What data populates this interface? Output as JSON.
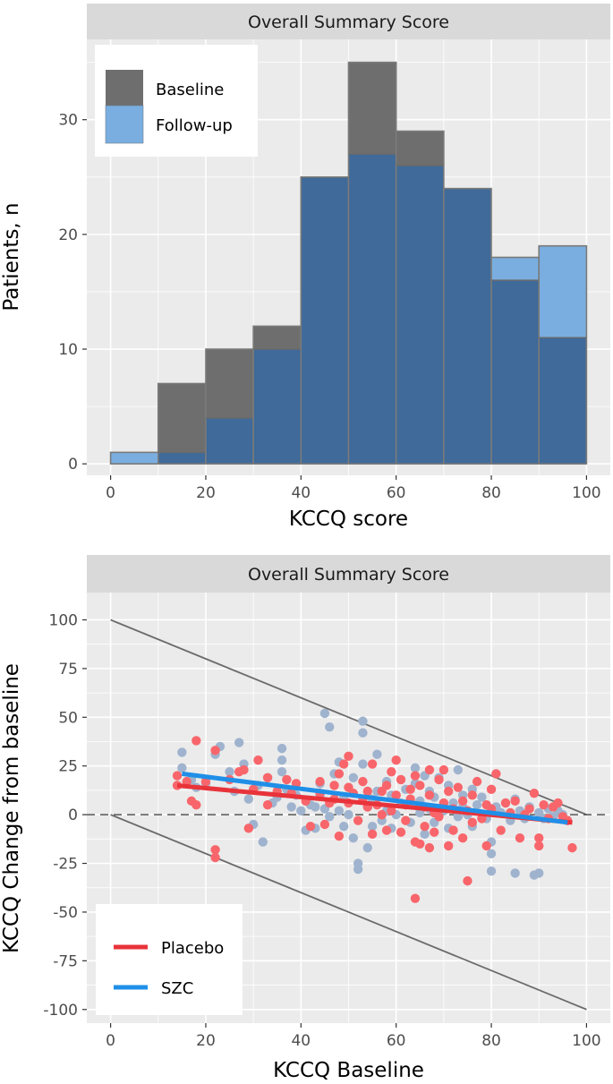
{
  "chart_data": [
    {
      "type": "histogram",
      "facet_label": "Overall Summary Score",
      "xlabel": "KCCQ score",
      "ylabel": "Patients, n",
      "xlim": [
        -5,
        105
      ],
      "ylim": [
        -1,
        37
      ],
      "x_ticks": [
        "0",
        "20",
        "40",
        "60",
        "80",
        "100"
      ],
      "y_ticks": [
        "0",
        "10",
        "20",
        "30"
      ],
      "bin_edges": [
        0,
        10,
        20,
        30,
        40,
        50,
        60,
        70,
        80,
        90,
        100
      ],
      "series": [
        {
          "name": "Baseline",
          "color": "#6e6e6e",
          "values": [
            0,
            7,
            10,
            12,
            25,
            35,
            29,
            24,
            16,
            11
          ]
        },
        {
          "name": "Follow-up",
          "color": "#7aaee0",
          "values": [
            1,
            1,
            4,
            10,
            25,
            27,
            26,
            24,
            18,
            19
          ]
        }
      ],
      "overlap_color": "#3f6a9a",
      "legend": {
        "position": "top-left"
      },
      "grid": true
    },
    {
      "type": "scatter",
      "facet_label": "Overall Summary Score",
      "xlabel": "KCCQ Baseline",
      "ylabel": "KCCQ Change from baseline",
      "xlim": [
        -5,
        105
      ],
      "ylim": [
        -107,
        114
      ],
      "x_ticks": [
        "0",
        "20",
        "40",
        "60",
        "80",
        "100"
      ],
      "y_ticks": [
        "100",
        "75",
        "50",
        "25",
        "0",
        "-25",
        "-50",
        "-75",
        "-100"
      ],
      "reference_lines": {
        "upper_bound": [
          [
            0,
            100
          ],
          [
            100,
            0
          ]
        ],
        "lower_bound": [
          [
            0,
            0
          ],
          [
            100,
            -100
          ]
        ],
        "zero_line": 0
      },
      "series": [
        {
          "name": "Placebo",
          "color": "#f8666b",
          "line_color": "#e8333a",
          "fit": [
            [
              14,
              15
            ],
            [
              97,
              -4
            ]
          ],
          "points": [
            [
              14,
              20
            ],
            [
              14,
              15
            ],
            [
              16,
              17
            ],
            [
              17,
              7
            ],
            [
              18,
              38
            ],
            [
              18,
              5
            ],
            [
              20,
              17
            ],
            [
              22,
              33
            ],
            [
              22,
              -18
            ],
            [
              22,
              -22
            ],
            [
              25,
              18
            ],
            [
              27,
              22
            ],
            [
              28,
              23
            ],
            [
              29,
              -7
            ],
            [
              30,
              13
            ],
            [
              31,
              28
            ],
            [
              33,
              19
            ],
            [
              33,
              5
            ],
            [
              35,
              12
            ],
            [
              37,
              18
            ],
            [
              38,
              11
            ],
            [
              39,
              16
            ],
            [
              41,
              7
            ],
            [
              42,
              -6
            ],
            [
              44,
              17
            ],
            [
              44,
              11
            ],
            [
              45,
              -5
            ],
            [
              46,
              6
            ],
            [
              47,
              15
            ],
            [
              47,
              8
            ],
            [
              48,
              21
            ],
            [
              48,
              -11
            ],
            [
              49,
              26
            ],
            [
              50,
              30
            ],
            [
              50,
              14
            ],
            [
              50,
              6
            ],
            [
              51,
              11
            ],
            [
              52,
              -3
            ],
            [
              53,
              17
            ],
            [
              53,
              8
            ],
            [
              54,
              12
            ],
            [
              54,
              4
            ],
            [
              55,
              -10
            ],
            [
              55,
              26
            ],
            [
              56,
              5
            ],
            [
              57,
              12
            ],
            [
              57,
              0
            ],
            [
              58,
              15
            ],
            [
              58,
              -8
            ],
            [
              59,
              22
            ],
            [
              59,
              2
            ],
            [
              60,
              10
            ],
            [
              60,
              28
            ],
            [
              61,
              -9
            ],
            [
              61,
              18
            ],
            [
              62,
              5
            ],
            [
              62,
              -3
            ],
            [
              63,
              13
            ],
            [
              63,
              8
            ],
            [
              64,
              20
            ],
            [
              64,
              -14
            ],
            [
              64,
              -43
            ],
            [
              65,
              15
            ],
            [
              65,
              -15
            ],
            [
              66,
              4
            ],
            [
              66,
              -6
            ],
            [
              67,
              10
            ],
            [
              67,
              23
            ],
            [
              67,
              -17
            ],
            [
              68,
              1
            ],
            [
              68,
              -9
            ],
            [
              69,
              18
            ],
            [
              69,
              -1
            ],
            [
              70,
              6
            ],
            [
              70,
              23
            ],
            [
              71,
              -16
            ],
            [
              71,
              12
            ],
            [
              72,
              3
            ],
            [
              72,
              -8
            ],
            [
              73,
              14
            ],
            [
              74,
              7
            ],
            [
              74,
              -12
            ],
            [
              75,
              -34
            ],
            [
              75,
              2
            ],
            [
              76,
              10
            ],
            [
              76,
              -4
            ],
            [
              77,
              17
            ],
            [
              78,
              -2
            ],
            [
              79,
              5
            ],
            [
              79,
              -16
            ],
            [
              80,
              3
            ],
            [
              80,
              13
            ],
            [
              81,
              21
            ],
            [
              82,
              -8
            ],
            [
              83,
              6
            ],
            [
              84,
              1
            ],
            [
              85,
              7
            ],
            [
              86,
              -12
            ],
            [
              87,
              0
            ],
            [
              88,
              3
            ],
            [
              89,
              11
            ],
            [
              90,
              -12
            ],
            [
              90,
              -16
            ],
            [
              91,
              5
            ],
            [
              92,
              -2
            ],
            [
              93,
              4
            ],
            [
              94,
              6
            ],
            [
              95,
              -1
            ],
            [
              96,
              -3
            ],
            [
              97,
              -17
            ]
          ]
        },
        {
          "name": "SZC",
          "color": "#9fb3ce",
          "line_color": "#1f8fe8",
          "fit": [
            [
              15,
              21
            ],
            [
              96,
              -4
            ]
          ],
          "points": [
            [
              15,
              32
            ],
            [
              15,
              24
            ],
            [
              17,
              18
            ],
            [
              18,
              14
            ],
            [
              20,
              16
            ],
            [
              22,
              31
            ],
            [
              23,
              35
            ],
            [
              25,
              22
            ],
            [
              26,
              12
            ],
            [
              27,
              37
            ],
            [
              28,
              26
            ],
            [
              29,
              8
            ],
            [
              30,
              -5
            ],
            [
              31,
              15
            ],
            [
              32,
              -14
            ],
            [
              33,
              19
            ],
            [
              34,
              6
            ],
            [
              35,
              9
            ],
            [
              36,
              34
            ],
            [
              36,
              28
            ],
            [
              36,
              22
            ],
            [
              37,
              13
            ],
            [
              38,
              4
            ],
            [
              39,
              10
            ],
            [
              40,
              2
            ],
            [
              41,
              -8
            ],
            [
              42,
              5
            ],
            [
              43,
              -7
            ],
            [
              43,
              4
            ],
            [
              44,
              10
            ],
            [
              44,
              16
            ],
            [
              45,
              52
            ],
            [
              45,
              3
            ],
            [
              46,
              -1
            ],
            [
              46,
              45
            ],
            [
              47,
              8
            ],
            [
              47,
              21
            ],
            [
              48,
              2
            ],
            [
              48,
              27
            ],
            [
              49,
              -6
            ],
            [
              49,
              9
            ],
            [
              50,
              14
            ],
            [
              50,
              0
            ],
            [
              51,
              19
            ],
            [
              51,
              -12
            ],
            [
              52,
              -25
            ],
            [
              52,
              -28
            ],
            [
              53,
              48
            ],
            [
              53,
              42
            ],
            [
              53,
              26
            ],
            [
              54,
              -17
            ],
            [
              54,
              4
            ],
            [
              55,
              8
            ],
            [
              55,
              -6
            ],
            [
              56,
              31
            ],
            [
              56,
              12
            ],
            [
              57,
              -3
            ],
            [
              58,
              17
            ],
            [
              58,
              2
            ],
            [
              59,
              -7
            ],
            [
              59,
              10
            ],
            [
              60,
              0
            ],
            [
              61,
              6
            ],
            [
              62,
              13
            ],
            [
              63,
              -4
            ],
            [
              64,
              24
            ],
            [
              64,
              16
            ],
            [
              65,
              7
            ],
            [
              65,
              1
            ],
            [
              66,
              20
            ],
            [
              66,
              -10
            ],
            [
              67,
              12
            ],
            [
              67,
              3
            ],
            [
              68,
              9
            ],
            [
              68,
              -4
            ],
            [
              69,
              19
            ],
            [
              70,
              2
            ],
            [
              71,
              15
            ],
            [
              71,
              -7
            ],
            [
              72,
              6
            ],
            [
              73,
              23
            ],
            [
              73,
              -1
            ],
            [
              74,
              10
            ],
            [
              74,
              4
            ],
            [
              75,
              0
            ],
            [
              76,
              13
            ],
            [
              76,
              -6
            ],
            [
              77,
              5
            ],
            [
              78,
              9
            ],
            [
              79,
              -2
            ],
            [
              80,
              -14
            ],
            [
              80,
              -20
            ],
            [
              80,
              -29
            ],
            [
              81,
              4
            ],
            [
              82,
              1
            ],
            [
              83,
              6
            ],
            [
              84,
              -3
            ],
            [
              85,
              -30
            ],
            [
              85,
              8
            ],
            [
              86,
              2
            ],
            [
              87,
              -2
            ],
            [
              88,
              4
            ],
            [
              89,
              -31
            ],
            [
              90,
              -30
            ],
            [
              90,
              1
            ],
            [
              91,
              -2
            ],
            [
              92,
              3
            ],
            [
              93,
              -1
            ],
            [
              94,
              2
            ],
            [
              95,
              0
            ],
            [
              96,
              -3
            ]
          ]
        }
      ],
      "legend": {
        "position": "bottom-left"
      },
      "grid": true
    }
  ]
}
